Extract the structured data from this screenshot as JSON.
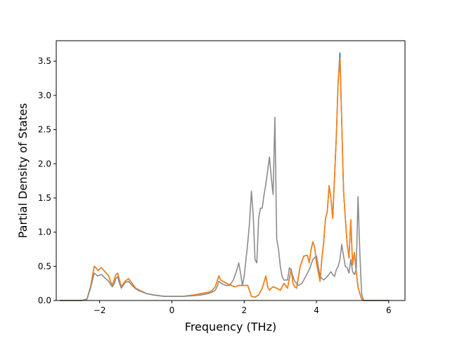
{
  "chart_data": {
    "type": "line",
    "xlabel": "Frequency (THz)",
    "ylabel": "Partial Density of States",
    "xlim": [
      -3.2,
      6.45
    ],
    "ylim": [
      0.0,
      3.8
    ],
    "xticks": [
      -2,
      0,
      2,
      4,
      6
    ],
    "yticks": [
      0.0,
      0.5,
      1.0,
      1.5,
      2.0,
      2.5,
      3.0,
      3.5
    ],
    "xtick_labels": [
      "−2",
      "0",
      "2",
      "4",
      "6"
    ],
    "ytick_labels": [
      "0.0",
      "0.5",
      "1.0",
      "1.5",
      "2.0",
      "2.5",
      "3.0",
      "3.5"
    ],
    "grid": false,
    "legend": "none",
    "series": [
      {
        "color": "#1f77b4",
        "x": [
          -3.1,
          -2.5,
          -2.35,
          -2.25,
          -2.15,
          -2.1,
          -2.05,
          -2.0,
          -1.95,
          -1.85,
          -1.75,
          -1.7,
          -1.65,
          -1.6,
          -1.55,
          -1.5,
          -1.45,
          -1.4,
          -1.3,
          -1.2,
          -1.1,
          -1.0,
          -0.9,
          -0.7,
          -0.5,
          -0.2,
          0.0,
          0.3,
          0.6,
          0.8,
          1.0,
          1.1,
          1.2,
          1.25,
          1.3,
          1.35,
          1.45,
          1.55,
          1.65,
          1.75,
          1.85,
          1.95,
          2.1,
          2.2,
          2.3,
          2.4,
          2.5,
          2.6,
          2.65,
          2.7,
          2.75,
          2.8,
          2.9,
          3.0,
          3.1,
          3.2,
          3.3,
          3.35,
          3.4,
          3.45,
          3.55,
          3.65,
          3.75,
          3.8,
          3.85,
          3.9,
          3.95,
          4.0,
          4.1,
          4.15,
          4.2,
          4.25,
          4.3,
          4.35,
          4.4,
          4.45,
          4.5,
          4.55,
          4.6,
          4.65,
          4.7,
          4.75,
          4.8,
          4.85,
          4.9,
          4.95,
          5.0,
          5.05,
          5.1,
          5.15,
          5.2,
          5.25,
          5.3,
          6.0
        ],
        "y": [
          0,
          0,
          0.02,
          0.2,
          0.5,
          0.48,
          0.44,
          0.46,
          0.48,
          0.42,
          0.36,
          0.28,
          0.22,
          0.3,
          0.38,
          0.4,
          0.3,
          0.2,
          0.28,
          0.32,
          0.25,
          0.18,
          0.15,
          0.1,
          0.08,
          0.06,
          0.06,
          0.06,
          0.08,
          0.1,
          0.12,
          0.14,
          0.2,
          0.28,
          0.36,
          0.3,
          0.27,
          0.24,
          0.22,
          0.2,
          0.22,
          0.22,
          0.22,
          0.06,
          0.05,
          0.08,
          0.18,
          0.36,
          0.2,
          0.15,
          0.18,
          0.2,
          0.18,
          0.15,
          0.25,
          0.18,
          0.46,
          0.25,
          0.2,
          0.18,
          0.5,
          0.65,
          0.66,
          0.55,
          0.74,
          0.86,
          0.78,
          0.55,
          0.28,
          0.62,
          0.85,
          1.2,
          1.3,
          1.68,
          1.5,
          1.2,
          1.8,
          2.4,
          3.2,
          3.62,
          2.6,
          1.6,
          1.2,
          0.82,
          0.62,
          1.18,
          0.52,
          0.7,
          0.42,
          0.2,
          0.1,
          0.02,
          0,
          0
        ]
      },
      {
        "color": "#ff7f0e",
        "x": [
          -3.1,
          -2.5,
          -2.35,
          -2.25,
          -2.15,
          -2.1,
          -2.05,
          -2.0,
          -1.95,
          -1.85,
          -1.75,
          -1.7,
          -1.65,
          -1.6,
          -1.55,
          -1.5,
          -1.45,
          -1.4,
          -1.3,
          -1.2,
          -1.1,
          -1.0,
          -0.9,
          -0.7,
          -0.5,
          -0.2,
          0.0,
          0.3,
          0.6,
          0.8,
          1.0,
          1.1,
          1.2,
          1.25,
          1.3,
          1.35,
          1.45,
          1.55,
          1.65,
          1.75,
          1.85,
          1.95,
          2.1,
          2.2,
          2.3,
          2.4,
          2.5,
          2.6,
          2.65,
          2.7,
          2.75,
          2.8,
          2.9,
          3.0,
          3.1,
          3.2,
          3.3,
          3.35,
          3.4,
          3.45,
          3.55,
          3.65,
          3.75,
          3.8,
          3.85,
          3.9,
          3.95,
          4.0,
          4.1,
          4.15,
          4.2,
          4.25,
          4.3,
          4.35,
          4.4,
          4.45,
          4.5,
          4.55,
          4.6,
          4.65,
          4.7,
          4.75,
          4.8,
          4.85,
          4.9,
          4.95,
          5.0,
          5.05,
          5.1,
          5.15,
          5.2,
          5.25,
          5.3,
          6.0
        ],
        "y": [
          0,
          0,
          0.02,
          0.2,
          0.5,
          0.48,
          0.44,
          0.46,
          0.48,
          0.42,
          0.36,
          0.28,
          0.22,
          0.3,
          0.38,
          0.4,
          0.3,
          0.2,
          0.28,
          0.32,
          0.25,
          0.18,
          0.15,
          0.1,
          0.08,
          0.06,
          0.06,
          0.06,
          0.08,
          0.1,
          0.12,
          0.14,
          0.2,
          0.28,
          0.36,
          0.3,
          0.27,
          0.24,
          0.22,
          0.2,
          0.22,
          0.22,
          0.22,
          0.06,
          0.05,
          0.08,
          0.18,
          0.36,
          0.2,
          0.15,
          0.18,
          0.2,
          0.18,
          0.15,
          0.25,
          0.18,
          0.46,
          0.25,
          0.2,
          0.18,
          0.5,
          0.65,
          0.66,
          0.55,
          0.74,
          0.86,
          0.78,
          0.55,
          0.28,
          0.62,
          0.85,
          1.2,
          1.3,
          1.68,
          1.5,
          1.2,
          1.8,
          2.4,
          3.2,
          3.55,
          2.6,
          1.6,
          1.2,
          0.82,
          0.62,
          1.18,
          0.52,
          0.7,
          0.42,
          0.2,
          0.1,
          0.02,
          0,
          0
        ]
      },
      {
        "color": "#8c8c8c",
        "x": [
          -3.1,
          -2.5,
          -2.35,
          -2.25,
          -2.15,
          -2.1,
          -2.05,
          -2.0,
          -1.95,
          -1.85,
          -1.75,
          -1.7,
          -1.65,
          -1.6,
          -1.55,
          -1.5,
          -1.45,
          -1.4,
          -1.3,
          -1.2,
          -1.1,
          -1.0,
          -0.9,
          -0.7,
          -0.5,
          -0.2,
          0.0,
          0.3,
          0.6,
          0.8,
          1.0,
          1.1,
          1.2,
          1.25,
          1.3,
          1.4,
          1.5,
          1.6,
          1.7,
          1.8,
          1.85,
          1.9,
          1.95,
          2.0,
          2.05,
          2.1,
          2.15,
          2.2,
          2.25,
          2.3,
          2.35,
          2.4,
          2.45,
          2.5,
          2.55,
          2.6,
          2.65,
          2.7,
          2.75,
          2.8,
          2.85,
          2.9,
          2.95,
          3.0,
          3.05,
          3.1,
          3.2,
          3.25,
          3.3,
          3.35,
          3.4,
          3.5,
          3.6,
          3.7,
          3.8,
          3.9,
          4.0,
          4.05,
          4.1,
          4.2,
          4.3,
          4.4,
          4.45,
          4.5,
          4.55,
          4.6,
          4.65,
          4.7,
          4.75,
          4.8,
          4.85,
          4.9,
          4.95,
          5.0,
          5.05,
          5.1,
          5.15,
          5.2,
          5.25,
          5.3,
          6.0
        ],
        "y": [
          0,
          0,
          0.02,
          0.18,
          0.4,
          0.38,
          0.36,
          0.37,
          0.38,
          0.33,
          0.28,
          0.24,
          0.2,
          0.24,
          0.32,
          0.35,
          0.25,
          0.18,
          0.26,
          0.28,
          0.22,
          0.17,
          0.14,
          0.1,
          0.08,
          0.06,
          0.06,
          0.06,
          0.07,
          0.08,
          0.1,
          0.12,
          0.15,
          0.2,
          0.28,
          0.24,
          0.22,
          0.22,
          0.3,
          0.45,
          0.55,
          0.4,
          0.22,
          0.35,
          0.6,
          0.85,
          1.15,
          1.6,
          1.25,
          0.6,
          0.55,
          1.2,
          1.35,
          1.35,
          1.55,
          1.7,
          1.9,
          2.1,
          1.8,
          1.55,
          2.68,
          0.9,
          0.75,
          0.5,
          0.35,
          0.3,
          0.3,
          0.48,
          0.44,
          0.35,
          0.28,
          0.22,
          0.25,
          0.35,
          0.45,
          0.6,
          0.65,
          0.5,
          0.35,
          0.3,
          0.35,
          0.42,
          0.38,
          0.35,
          0.45,
          0.5,
          0.6,
          0.82,
          0.65,
          0.5,
          0.48,
          0.4,
          0.6,
          0.42,
          0.38,
          0.45,
          1.52,
          0.7,
          0.1,
          0,
          0
        ]
      }
    ]
  }
}
